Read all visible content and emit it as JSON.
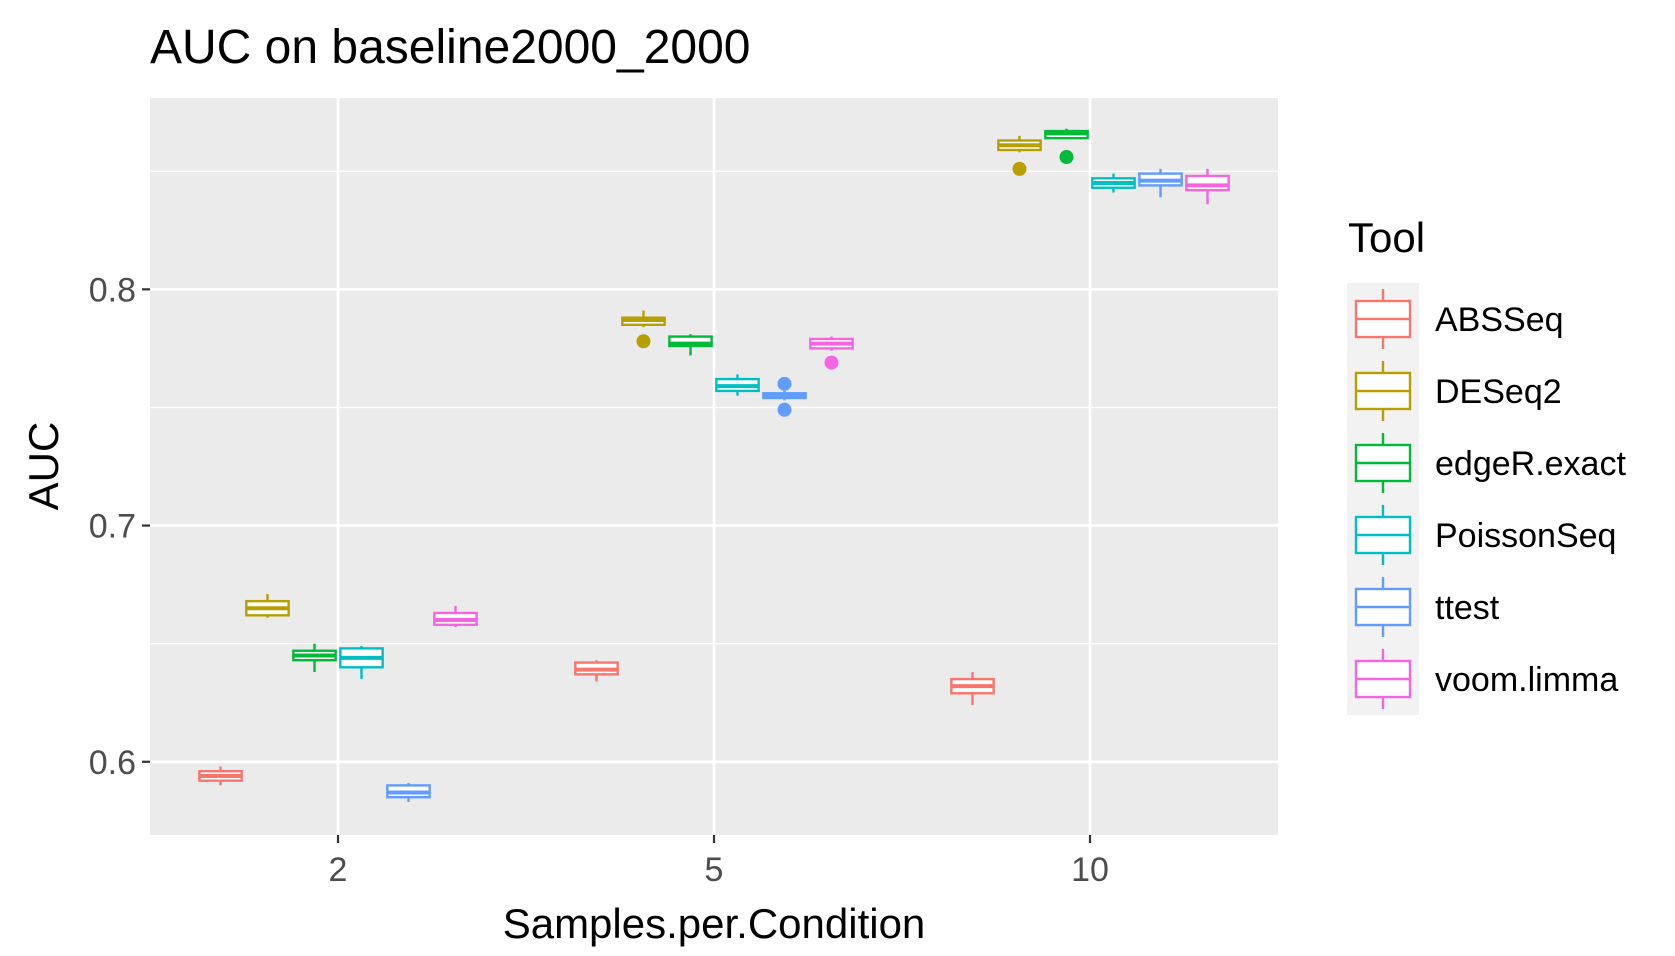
{
  "chart_data": {
    "type": "boxplot",
    "title": "AUC on baseline2000_2000",
    "xlabel": "Samples.per.Condition",
    "ylabel": "AUC",
    "categories": [
      "2",
      "5",
      "10"
    ],
    "y_ticks": [
      0.6,
      0.7,
      0.8
    ],
    "y_tick_labels": [
      "0.6",
      "0.7",
      "0.8"
    ],
    "ylim": [
      0.569,
      0.881
    ],
    "grid": true,
    "legend": {
      "title": "Tool",
      "position": "right"
    },
    "series": [
      {
        "name": "ABSSeq",
        "color": "#F8766D",
        "boxes": [
          {
            "min": 0.59,
            "q1": 0.592,
            "median": 0.594,
            "q3": 0.596,
            "max": 0.598,
            "outliers": []
          },
          {
            "min": 0.634,
            "q1": 0.637,
            "median": 0.639,
            "q3": 0.642,
            "max": 0.643,
            "outliers": []
          },
          {
            "min": 0.624,
            "q1": 0.629,
            "median": 0.632,
            "q3": 0.635,
            "max": 0.638,
            "outliers": []
          }
        ]
      },
      {
        "name": "DESeq2",
        "color": "#B79F00",
        "boxes": [
          {
            "min": 0.661,
            "q1": 0.662,
            "median": 0.665,
            "q3": 0.668,
            "max": 0.671,
            "outliers": []
          },
          {
            "min": 0.784,
            "q1": 0.785,
            "median": 0.787,
            "q3": 0.788,
            "max": 0.791,
            "outliers": [
              0.778
            ]
          },
          {
            "min": 0.858,
            "q1": 0.859,
            "median": 0.861,
            "q3": 0.863,
            "max": 0.865,
            "outliers": [
              0.851
            ]
          }
        ]
      },
      {
        "name": "edgeR.exact",
        "color": "#00BA38",
        "boxes": [
          {
            "min": 0.638,
            "q1": 0.643,
            "median": 0.645,
            "q3": 0.647,
            "max": 0.65,
            "outliers": []
          },
          {
            "min": 0.772,
            "q1": 0.776,
            "median": 0.777,
            "q3": 0.78,
            "max": 0.781,
            "outliers": []
          },
          {
            "min": 0.864,
            "q1": 0.864,
            "median": 0.866,
            "q3": 0.867,
            "max": 0.868,
            "outliers": [
              0.856
            ]
          }
        ]
      },
      {
        "name": "PoissonSeq",
        "color": "#00BFC4",
        "boxes": [
          {
            "min": 0.635,
            "q1": 0.64,
            "median": 0.644,
            "q3": 0.648,
            "max": 0.649,
            "outliers": []
          },
          {
            "min": 0.755,
            "q1": 0.757,
            "median": 0.759,
            "q3": 0.762,
            "max": 0.764,
            "outliers": []
          },
          {
            "min": 0.841,
            "q1": 0.843,
            "median": 0.845,
            "q3": 0.847,
            "max": 0.849,
            "outliers": []
          }
        ]
      },
      {
        "name": "ttest",
        "color": "#619CFF",
        "boxes": [
          {
            "min": 0.583,
            "q1": 0.585,
            "median": 0.587,
            "q3": 0.59,
            "max": 0.591,
            "outliers": []
          },
          {
            "min": 0.753,
            "q1": 0.754,
            "median": 0.755,
            "q3": 0.756,
            "max": 0.757,
            "outliers": [
              0.749,
              0.76
            ]
          },
          {
            "min": 0.839,
            "q1": 0.844,
            "median": 0.846,
            "q3": 0.849,
            "max": 0.851,
            "outliers": []
          }
        ]
      },
      {
        "name": "voom.limma",
        "color": "#F564E3",
        "boxes": [
          {
            "min": 0.657,
            "q1": 0.658,
            "median": 0.66,
            "q3": 0.663,
            "max": 0.666,
            "outliers": []
          },
          {
            "min": 0.774,
            "q1": 0.775,
            "median": 0.777,
            "q3": 0.779,
            "max": 0.78,
            "outliers": [
              0.769
            ]
          },
          {
            "min": 0.836,
            "q1": 0.842,
            "median": 0.844,
            "q3": 0.848,
            "max": 0.851,
            "outliers": []
          }
        ]
      }
    ]
  }
}
